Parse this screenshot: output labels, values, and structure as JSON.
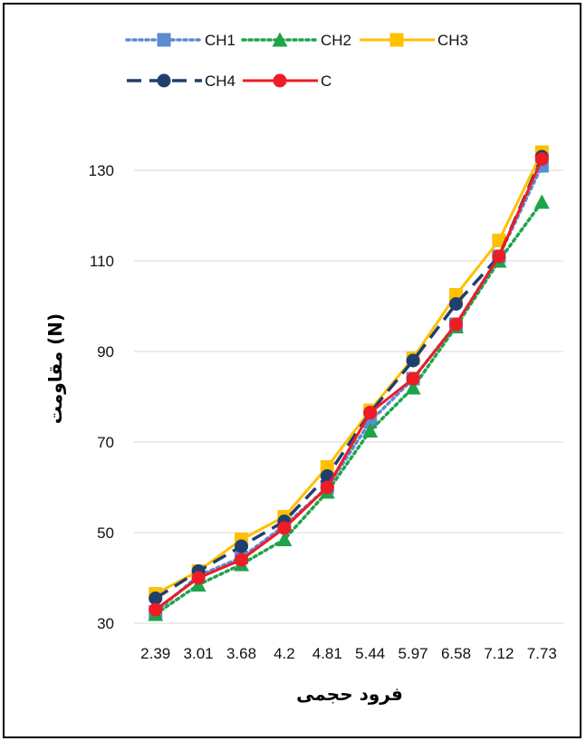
{
  "chart_data": {
    "type": "line",
    "xlabel": "فرود حجمی",
    "ylabel": "مقاومت (N)",
    "categories": [
      "2.39",
      "3.01",
      "3.68",
      "4.2",
      "4.81",
      "5.44",
      "5.97",
      "6.58",
      "7.12",
      "7.73"
    ],
    "ylim": [
      30,
      140
    ],
    "yticks": [
      30,
      50,
      70,
      90,
      110,
      130
    ],
    "grid": "horizontal",
    "legend_position": "top",
    "series": [
      {
        "name": "CH1",
        "color": "#5B8BD0",
        "marker": "square",
        "line": "dotted",
        "values": [
          32.5,
          40.5,
          44.5,
          51.5,
          60.0,
          74.5,
          84.0,
          96.0,
          111.0,
          131.0
        ]
      },
      {
        "name": "CH2",
        "color": "#1FA34A",
        "marker": "triangle",
        "line": "dotted",
        "values": [
          32.0,
          38.5,
          43.0,
          48.5,
          59.0,
          72.5,
          82.0,
          95.5,
          110.0,
          123.0
        ]
      },
      {
        "name": "CH3",
        "color": "#FFC000",
        "marker": "square",
        "line": "solid",
        "values": [
          36.5,
          41.5,
          48.5,
          53.5,
          64.5,
          77.0,
          88.5,
          102.5,
          114.5,
          134.0
        ]
      },
      {
        "name": "CH4",
        "color": "#1F3F6E",
        "marker": "circle",
        "line": "dashed",
        "values": [
          35.5,
          41.5,
          47.0,
          52.5,
          62.5,
          76.5,
          88.0,
          100.5,
          111.0,
          133.0
        ]
      },
      {
        "name": "C",
        "color": "#EE1C25",
        "marker": "circle",
        "line": "solid",
        "values": [
          33.0,
          40.0,
          44.0,
          51.0,
          60.0,
          76.5,
          84.0,
          96.0,
          111.0,
          132.5
        ]
      }
    ]
  }
}
